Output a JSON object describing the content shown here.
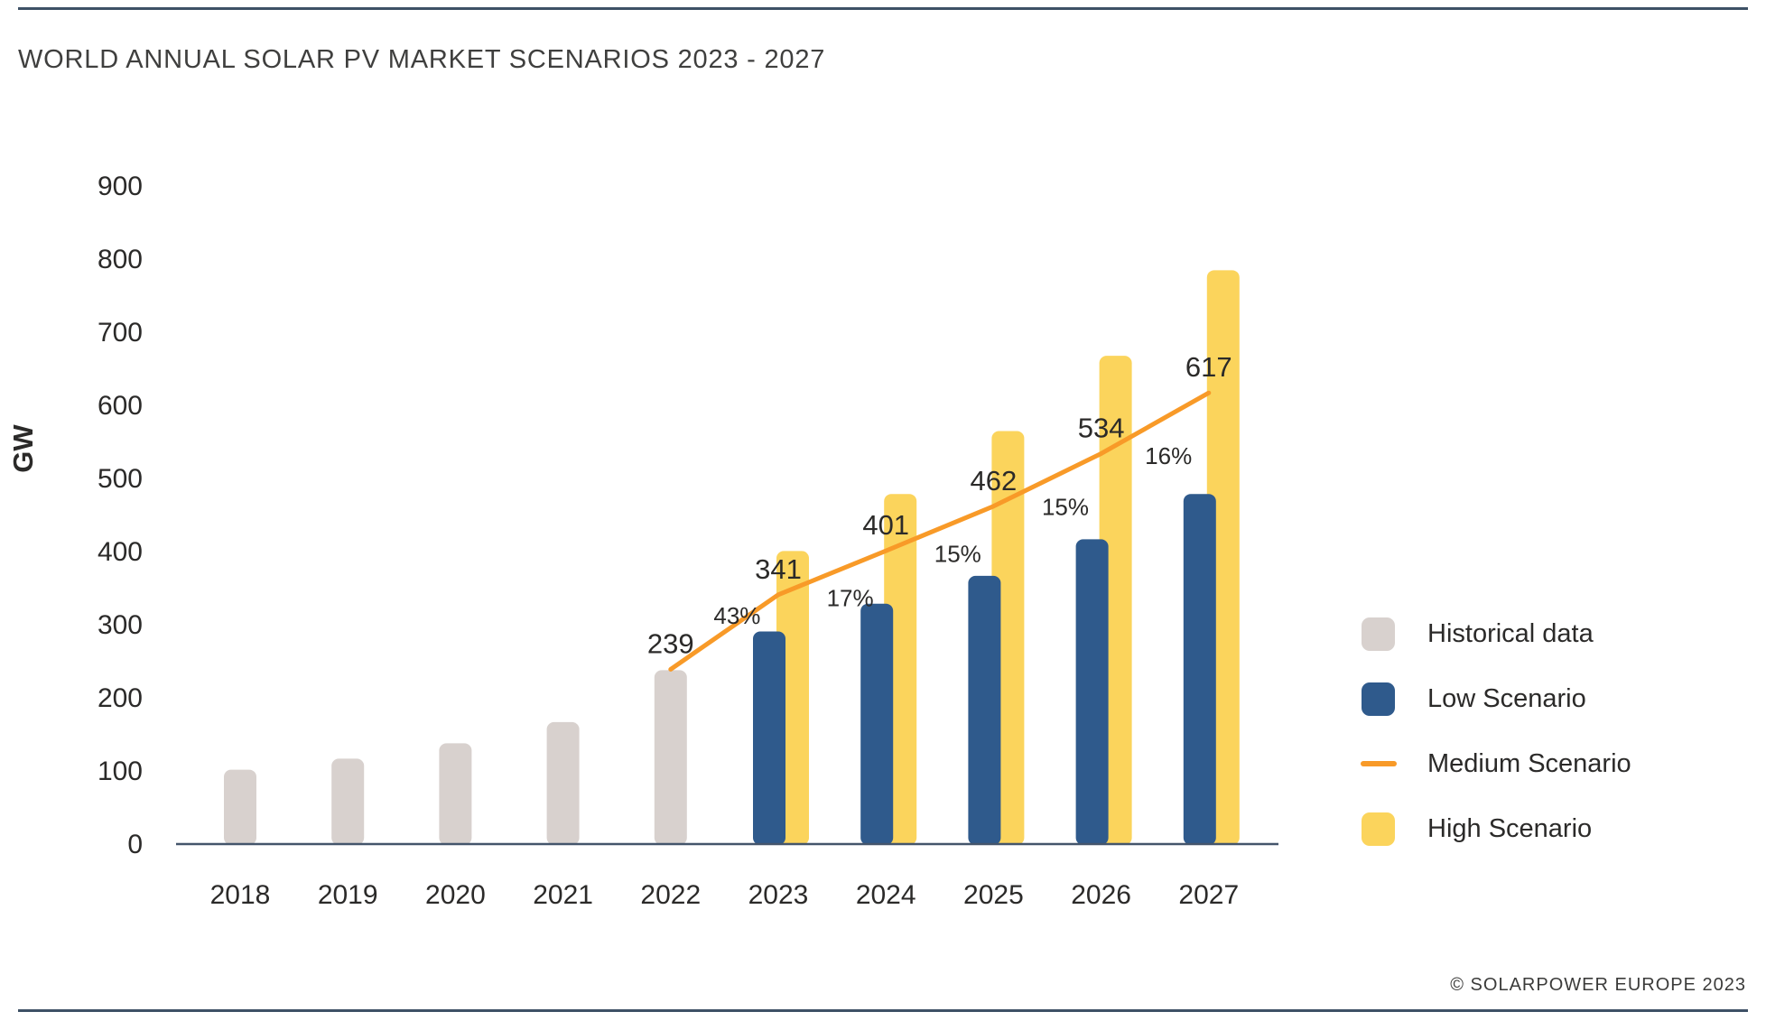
{
  "page": {
    "title": "WORLD ANNUAL SOLAR PV MARKET SCENARIOS 2023 - 2027",
    "footer": "© SOLARPOWER EUROPE 2023"
  },
  "chart_data": {
    "type": "combo-bar-line",
    "title": "WORLD ANNUAL SOLAR PV MARKET SCENARIOS 2023 - 2027",
    "xlabel": "",
    "ylabel": "GW",
    "ylim": [
      0,
      900
    ],
    "yticks": [
      0,
      100,
      200,
      300,
      400,
      500,
      600,
      700,
      800,
      900
    ],
    "grid": false,
    "legend_position": "right",
    "categories": [
      "2018",
      "2019",
      "2020",
      "2021",
      "2022",
      "2023",
      "2024",
      "2025",
      "2026",
      "2027"
    ],
    "series": [
      {
        "name": "Historical data",
        "type": "bar",
        "color": "#d8d1ce",
        "values": [
          103,
          118,
          139,
          168,
          239,
          null,
          null,
          null,
          null,
          null
        ]
      },
      {
        "name": "Low Scenario",
        "type": "bar",
        "color": "#2f5a8c",
        "values": [
          null,
          null,
          null,
          null,
          null,
          292,
          330,
          368,
          418,
          480
        ]
      },
      {
        "name": "Medium Scenario",
        "type": "line",
        "color": "#f89a28",
        "values": [
          null,
          null,
          null,
          null,
          239,
          341,
          401,
          462,
          534,
          617
        ],
        "point_labels": [
          "",
          "",
          "",
          "",
          "239",
          "341",
          "401",
          "462",
          "534",
          "617"
        ],
        "growth_labels": [
          "43%",
          "17%",
          "15%",
          "15%",
          "16%"
        ]
      },
      {
        "name": "High Scenario",
        "type": "bar",
        "color": "#fbd45c",
        "values": [
          null,
          null,
          null,
          null,
          null,
          402,
          480,
          566,
          669,
          786
        ]
      }
    ],
    "legend": [
      {
        "label": "Historical data",
        "swatch": "square",
        "color": "#d8d1ce"
      },
      {
        "label": "Low Scenario",
        "swatch": "square",
        "color": "#2f5a8c"
      },
      {
        "label": "Medium Scenario",
        "swatch": "line",
        "color": "#f89a28"
      },
      {
        "label": "High Scenario",
        "swatch": "square",
        "color": "#fbd45c"
      }
    ]
  }
}
